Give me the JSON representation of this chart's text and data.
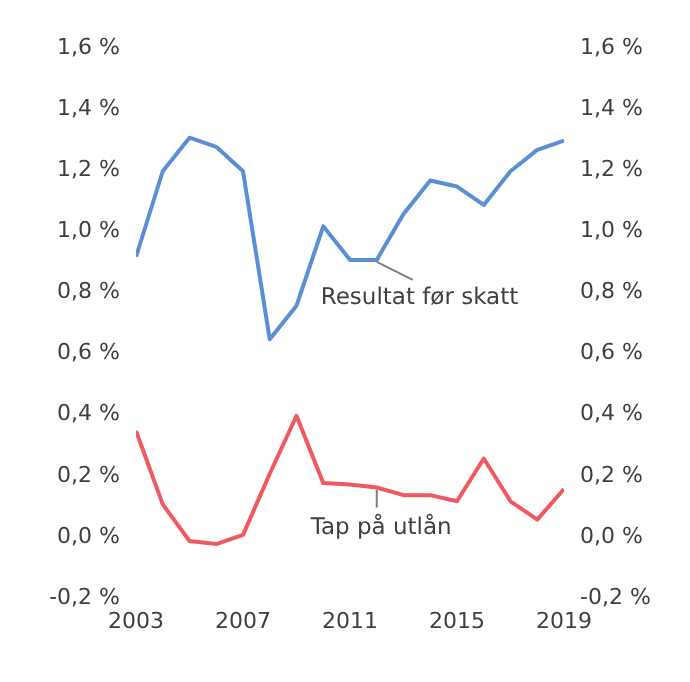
{
  "chart_data": {
    "type": "line",
    "x": [
      2003,
      2004,
      2005,
      2006,
      2007,
      2008,
      2009,
      2010,
      2011,
      2012,
      2013,
      2014,
      2015,
      2016,
      2017,
      2018,
      2019
    ],
    "series": [
      {
        "name": "Resultat før skatt",
        "color": "#5b8fd4",
        "values": [
          0.91,
          1.19,
          1.3,
          1.27,
          1.19,
          0.64,
          0.75,
          1.01,
          0.9,
          0.9,
          1.05,
          1.16,
          1.14,
          1.08,
          1.19,
          1.26,
          1.29
        ]
      },
      {
        "name": "Tap på utlån",
        "color": "#f0595f",
        "values": [
          0.34,
          0.1,
          -0.02,
          -0.03,
          0.0,
          0.2,
          0.39,
          0.17,
          0.165,
          0.155,
          0.13,
          0.13,
          0.11,
          0.25,
          0.11,
          0.05,
          0.15
        ]
      }
    ],
    "xlim": [
      2003,
      2019
    ],
    "xticks": [
      2003,
      2007,
      2011,
      2015,
      2019
    ],
    "ylim": [
      -0.2,
      1.6
    ],
    "yticks": [
      {
        "value": -0.2,
        "label": "-0,2 %"
      },
      {
        "value": 0,
        "label": "0,0 %"
      },
      {
        "value": 0.2,
        "label": "0,2 %"
      },
      {
        "value": 0.4,
        "label": "0,4 %"
      },
      {
        "value": 0.6,
        "label": "0,6 %"
      },
      {
        "value": 0.8,
        "label": "0,8 %"
      },
      {
        "value": 1.0,
        "label": "1,0 %"
      },
      {
        "value": 1.2,
        "label": "1,2 %"
      },
      {
        "value": 1.4,
        "label": "1,4 %"
      },
      {
        "value": 1.6,
        "label": "1,6 %"
      }
    ],
    "y2lim": [
      -0.2,
      1.6
    ],
    "y2ticks": [
      {
        "value": -0.2,
        "label": "-0,2 %"
      },
      {
        "value": 0,
        "label": "0,0 %"
      },
      {
        "value": 0.2,
        "label": "0,2 %"
      },
      {
        "value": 0.4,
        "label": "0,4 %"
      },
      {
        "value": 0.6,
        "label": "0,6 %"
      },
      {
        "value": 0.8,
        "label": "0,8 %"
      },
      {
        "value": 1.0,
        "label": "1,0 %"
      },
      {
        "value": 1.2,
        "label": "1,2 %"
      },
      {
        "value": 1.4,
        "label": "1,4 %"
      },
      {
        "value": 1.6,
        "label": "1,6 %"
      }
    ],
    "grid": false,
    "legend": false,
    "marker": "none",
    "line_style": "solid"
  }
}
